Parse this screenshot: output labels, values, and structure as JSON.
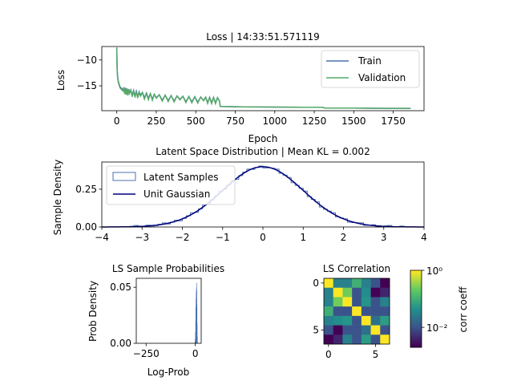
{
  "chart_data": [
    {
      "id": "loss",
      "type": "line",
      "title": "Loss | 14:33:51.571119",
      "xlabel": "Epoch",
      "ylabel": "Loss",
      "xlim": [
        -95,
        1945
      ],
      "ylim": [
        -19.8,
        -7.4
      ],
      "xticks": [
        0,
        250,
        500,
        750,
        1000,
        1250,
        1500,
        1750
      ],
      "yticks": [
        -10,
        -15
      ],
      "legend_position": "upper-right",
      "series": [
        {
          "name": "Train",
          "color": "#4c72b0",
          "x": [
            0,
            2,
            5,
            10,
            20,
            40,
            80,
            150,
            250,
            400,
            550,
            650,
            655,
            800,
            1000,
            1300,
            1320,
            1500,
            1700,
            1860
          ],
          "y": [
            -7.6,
            -11.5,
            -13.2,
            -14.2,
            -15.2,
            -15.8,
            -16.3,
            -16.8,
            -17.3,
            -17.6,
            -17.8,
            -17.9,
            -19.0,
            -19.05,
            -19.1,
            -19.15,
            -19.3,
            -19.3,
            -19.35,
            -19.35
          ]
        },
        {
          "name": "Validation",
          "color": "#55a868",
          "x": [
            0,
            2,
            5,
            10,
            20,
            40,
            80,
            150,
            250,
            400,
            550,
            650,
            655,
            800,
            1000,
            1300,
            1320,
            1500,
            1700,
            1860
          ],
          "y": [
            -7.8,
            -11.8,
            -13.4,
            -14.4,
            -15.4,
            -16.0,
            -16.5,
            -17.0,
            -17.4,
            -17.7,
            -17.9,
            -18.0,
            -19.0,
            -19.05,
            -19.1,
            -19.15,
            -19.3,
            -19.3,
            -19.35,
            -19.35
          ]
        }
      ]
    },
    {
      "id": "latent",
      "type": "area",
      "title": "Latent Space Distribution | Mean KL = 0.002",
      "xlabel": "",
      "ylabel": "Sample Density",
      "xlim": [
        -4,
        4
      ],
      "ylim": [
        0,
        0.43
      ],
      "xticks": [
        -4,
        -3,
        -2,
        -1,
        0,
        1,
        2,
        3,
        4
      ],
      "xticklabels": [
        "−4",
        "−3",
        "−2",
        "−1",
        "0",
        "1",
        "2",
        "3",
        "4"
      ],
      "yticks": [
        0.0,
        0.25
      ],
      "yticklabels": [
        "0.00",
        "0.25"
      ],
      "legend_position": "upper-left",
      "series": [
        {
          "name": "Latent Samples",
          "style": "step-histogram",
          "color": "#4c72b0",
          "bins": 70,
          "range": [
            -3.5,
            3.5
          ],
          "mean": 0.0,
          "std": 1.0
        },
        {
          "name": "Unit Gaussian",
          "style": "line",
          "color": "#00007a",
          "mean": 0.0,
          "std": 1.0
        }
      ]
    },
    {
      "id": "logprob",
      "type": "bar",
      "title": "LS Sample Probabilities",
      "xlabel": "Log-Prob",
      "ylabel": "Prob Density",
      "xlim": [
        -300,
        30
      ],
      "ylim": [
        0,
        0.058
      ],
      "xticks": [
        -250,
        0
      ],
      "xticklabels": [
        "−250",
        "0"
      ],
      "yticks": [
        0.0,
        0.05
      ],
      "yticklabels": [
        "0.00",
        "0.05"
      ],
      "color": "#4c72b0",
      "x": [
        -2,
        -1,
        0,
        1,
        2,
        3,
        4,
        5,
        6,
        7,
        8,
        9,
        10
      ],
      "values": [
        0.002,
        0.004,
        0.01,
        0.02,
        0.032,
        0.04,
        0.046,
        0.05,
        0.054,
        0.048,
        0.035,
        0.018,
        0.006
      ]
    },
    {
      "id": "corr",
      "type": "heatmap",
      "title": "LS Correlation",
      "xlabel": "",
      "ylabel": "",
      "size": 7,
      "xticks": [
        0,
        5
      ],
      "yticks": [
        0,
        5
      ],
      "colorbar": {
        "label": "corr coeff",
        "scale": "log",
        "ticks": [
          "10⁰",
          "10⁻²"
        ]
      },
      "values": [
        [
          1.0,
          0.03,
          0.03,
          0.1,
          0.03,
          0.01,
          0.002
        ],
        [
          0.03,
          1.0,
          0.25,
          0.01,
          0.04,
          0.002,
          0.004
        ],
        [
          0.03,
          0.25,
          1.0,
          0.01,
          0.05,
          0.01,
          0.03
        ],
        [
          0.1,
          0.01,
          0.01,
          1.0,
          0.01,
          0.01,
          0.01
        ],
        [
          0.03,
          0.04,
          0.05,
          0.01,
          1.0,
          0.02,
          0.06
        ],
        [
          0.01,
          0.002,
          0.01,
          0.01,
          0.02,
          1.0,
          0.01
        ],
        [
          0.002,
          0.004,
          0.03,
          0.01,
          0.06,
          0.01,
          1.0
        ]
      ]
    }
  ]
}
